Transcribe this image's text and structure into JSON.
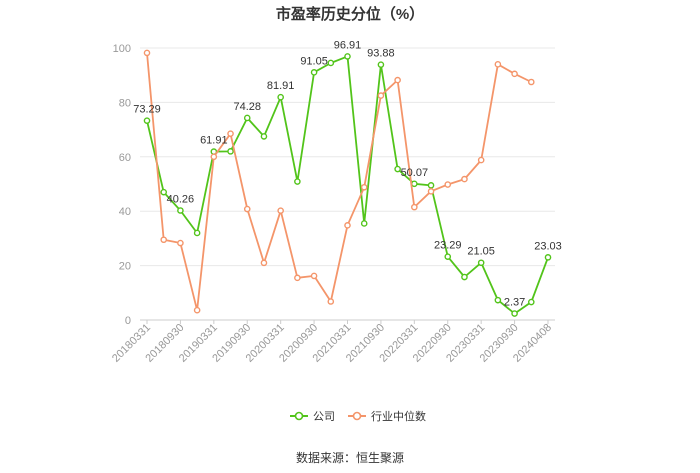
{
  "chart_data": {
    "type": "line",
    "title": "市盈率历史分位（%）",
    "source": "数据来源：恒生聚源",
    "ylim": [
      0,
      100
    ],
    "yticks": [
      0,
      20,
      40,
      60,
      80,
      100
    ],
    "grid": true,
    "legend_position": "bottom",
    "x_tick_labels": [
      "20180331",
      "20180930",
      "20190331",
      "20190930",
      "20200331",
      "20200930",
      "20210331",
      "20210930",
      "20220331",
      "20220930",
      "20230331",
      "20230930",
      "20240408"
    ],
    "x": [
      "20180331",
      "20180630",
      "20180930",
      "20181231",
      "20190331",
      "20190630",
      "20190930",
      "20191231",
      "20200331",
      "20200630",
      "20200930",
      "20201231",
      "20210331",
      "20210630",
      "20210930",
      "20211231",
      "20220331",
      "20220630",
      "20220930",
      "20221231",
      "20230331",
      "20230630",
      "20230930",
      "20231231",
      "20240408"
    ],
    "series": [
      {
        "name": "公司",
        "color": "#52c41a",
        "values": [
          73.29,
          47,
          40.26,
          32,
          61.91,
          62,
          74.28,
          67.5,
          81.91,
          50.9,
          91.05,
          94.5,
          96.91,
          35.5,
          93.88,
          55.5,
          50.07,
          49.5,
          23.29,
          15.8,
          21.05,
          7.3,
          2.37,
          6.6,
          23.03
        ],
        "labels": {
          "0": "73.29",
          "2": "40.26",
          "4": "61.91",
          "6": "74.28",
          "8": "81.91",
          "10": "91.05",
          "12": "96.91",
          "14": "93.88",
          "16": "50.07",
          "18": "23.29",
          "20": "21.05",
          "22": "2.37",
          "24": "23.03"
        }
      },
      {
        "name": "行业中位数",
        "color": "#f4956a",
        "values": [
          98.2,
          29.5,
          28.3,
          3.6,
          60,
          68.5,
          40.8,
          21,
          40.2,
          15.5,
          16.2,
          6.8,
          34.8,
          48.8,
          82.5,
          88.2,
          41.5,
          47.3,
          49.8,
          51.8,
          58.8,
          94,
          90.5,
          87.5,
          null
        ]
      }
    ]
  }
}
